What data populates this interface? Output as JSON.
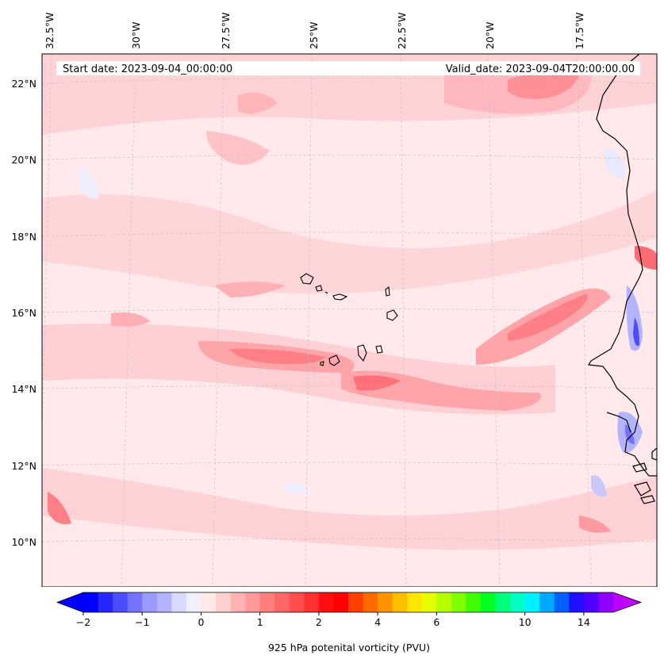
{
  "header": {
    "start_date": "Start date: 2023-09-04_00:00:00",
    "valid_date": "Valid_date: 2023-09-04T20:00:00.00"
  },
  "map": {
    "lon_labels": [
      "32.5°W",
      "30°W",
      "27.5°W",
      "25°W",
      "22.5°W",
      "20°W",
      "17.5°W"
    ],
    "lat_labels": [
      "22°N",
      "20°N",
      "18°N",
      "16°N",
      "14°N",
      "12°N",
      "10°N"
    ],
    "field": "925 hPa potenital vorticity (PVU)"
  },
  "colorbar": {
    "label": "925 hPa potenital vorticity (PVU)",
    "tick_labels": [
      "−2",
      "−1",
      "0",
      "1",
      "2",
      "4",
      "6",
      "10",
      "14"
    ],
    "colors": [
      "#0000ff",
      "#2626ff",
      "#4c4cff",
      "#7373ff",
      "#9999ff",
      "#b3b3ff",
      "#d9d9ff",
      "#f0f0ff",
      "#ffe8e8",
      "#ffd0d0",
      "#ffb3b3",
      "#ff9999",
      "#ff7f7f",
      "#ff6666",
      "#ff4c4c",
      "#ff3030",
      "#ff1010",
      "#ff0000",
      "#ff4000",
      "#ff6a00",
      "#ff9400",
      "#ffbe00",
      "#ffe600",
      "#e6ff00",
      "#b4ff00",
      "#7fff00",
      "#40ff00",
      "#00ff20",
      "#00ff7a",
      "#00ffc0",
      "#00f0ff",
      "#00a8ff",
      "#0060ff",
      "#2010ff",
      "#5000ff",
      "#9000ff"
    ]
  }
}
